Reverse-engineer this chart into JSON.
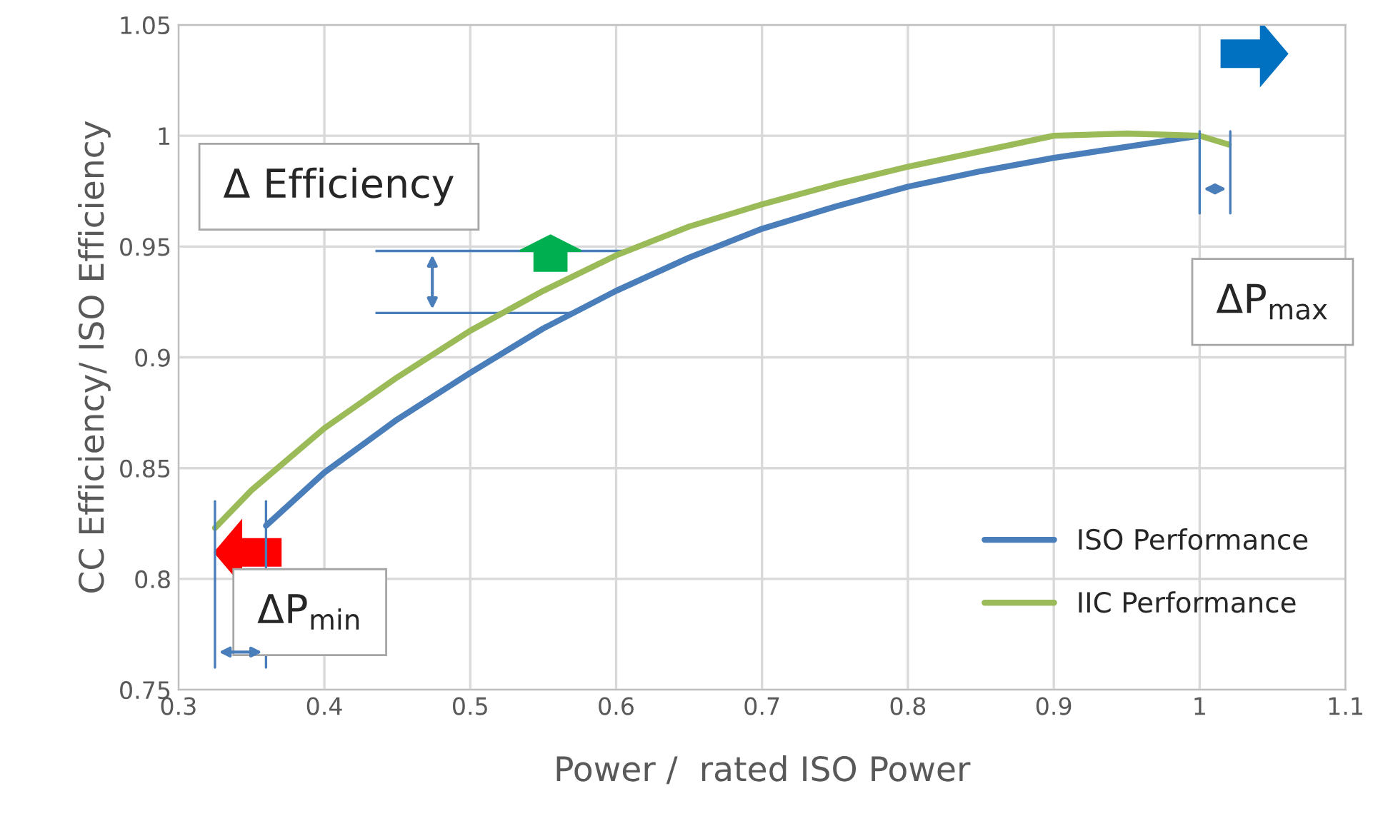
{
  "chart_data": {
    "type": "line",
    "xlabel": "Power /  rated ISO Power",
    "ylabel": "CC Efficiency/ ISO Efficiency",
    "series": [
      {
        "name": "ISO Performance",
        "color": "#4a7ebb",
        "x": [
          0.36,
          0.4,
          0.45,
          0.5,
          0.55,
          0.6,
          0.65,
          0.7,
          0.75,
          0.8,
          0.85,
          0.9,
          0.95,
          1.0
        ],
        "values": [
          0.824,
          0.848,
          0.872,
          0.893,
          0.913,
          0.93,
          0.945,
          0.958,
          0.968,
          0.977,
          0.984,
          0.99,
          0.995,
          1.0
        ]
      },
      {
        "name": "IIC Performance",
        "color": "#9bbb59",
        "x": [
          0.325,
          0.35,
          0.4,
          0.45,
          0.5,
          0.55,
          0.6,
          0.65,
          0.7,
          0.75,
          0.8,
          0.85,
          0.9,
          0.95,
          1.0,
          1.02
        ],
        "values": [
          0.823,
          0.84,
          0.868,
          0.891,
          0.912,
          0.93,
          0.946,
          0.959,
          0.969,
          0.978,
          0.986,
          0.993,
          1.0,
          1.001,
          1.0,
          0.996
        ]
      }
    ],
    "xlim": [
      0.3,
      1.1
    ],
    "ylim": [
      0.75,
      1.05
    ],
    "xticks": [
      0.3,
      0.4,
      0.5,
      0.6,
      0.7,
      0.8,
      0.9,
      1,
      1.1
    ],
    "yticks": [
      0.75,
      0.8,
      0.85,
      0.9,
      0.95,
      1,
      1.05
    ],
    "grid": true,
    "legend": "bottom right",
    "line_style": "solid",
    "marker": "none",
    "annotations": [
      {
        "text": "Δ Efficiency",
        "x": 0.61,
        "y": 0.948
      },
      "ΔP$_{max}$",
      "ΔP$_{min}$"
    ]
  }
}
